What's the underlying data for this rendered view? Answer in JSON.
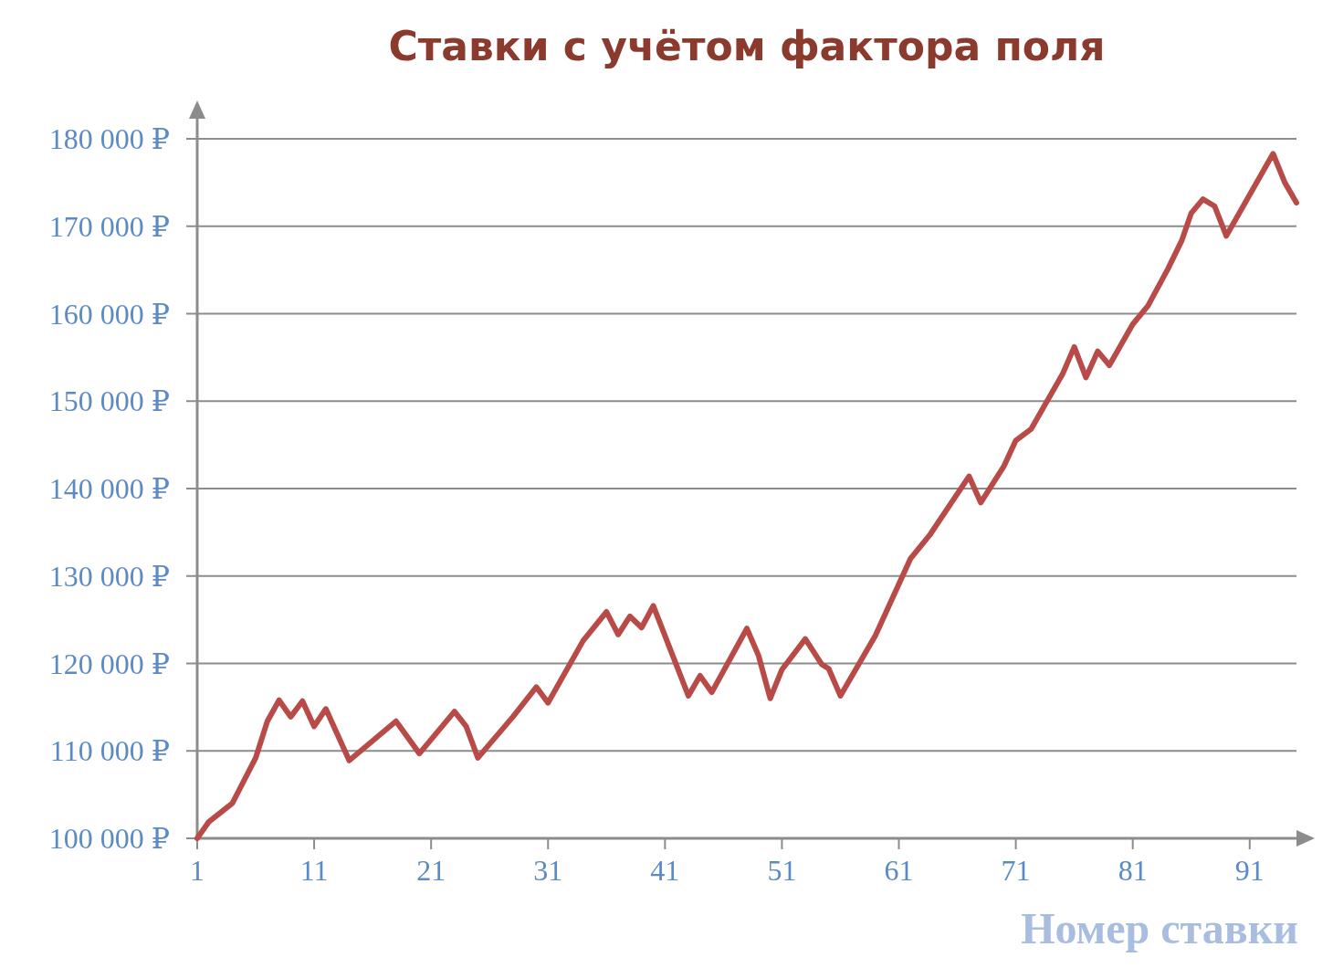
{
  "chart_data": {
    "type": "line",
    "title": "Ставки с учётом фактора поля",
    "xlabel": "Номер ставки",
    "x": [
      1,
      2,
      4,
      6,
      7,
      8,
      9,
      10,
      11,
      12,
      14,
      18,
      20,
      23,
      24,
      25,
      28,
      30,
      31,
      34,
      36,
      37,
      38,
      39,
      40,
      43,
      44,
      45,
      48,
      49,
      50,
      51,
      53,
      54.4,
      55,
      56,
      59,
      62,
      63.7,
      67,
      68,
      70,
      71,
      72.3,
      75,
      76,
      77,
      78,
      79,
      81,
      82.3,
      84,
      85.2,
      86,
      87,
      88,
      89,
      93,
      94,
      95
    ],
    "series": [
      {
        "color": "#b84a48",
        "values": [
          100000,
          101900,
          104000,
          109200,
          113400,
          115800,
          113900,
          115700,
          112800,
          114800,
          108900,
          113400,
          109700,
          114500,
          112800,
          109200,
          113900,
          117300,
          115500,
          122600,
          125900,
          123300,
          125400,
          124100,
          126600,
          116300,
          118600,
          116700,
          124000,
          120900,
          116000,
          119300,
          122800,
          119900,
          119400,
          116300,
          123200,
          132000,
          134800,
          141400,
          138400,
          142600,
          145500,
          146800,
          153100,
          156200,
          152700,
          155700,
          154100,
          158800,
          160900,
          165100,
          168400,
          171500,
          173100,
          172300,
          168900,
          178300,
          175000,
          172700
        ]
      }
    ],
    "xlim": [
      1,
      95
    ],
    "xticks": [
      1,
      11,
      21,
      31,
      41,
      51,
      61,
      71,
      81,
      91
    ],
    "ylim": [
      100000,
      180000
    ],
    "yticks": [
      {
        "value": 100000,
        "label": "100 000 ₽"
      },
      {
        "value": 110000,
        "label": "110 000 ₽"
      },
      {
        "value": 120000,
        "label": "120 000 ₽"
      },
      {
        "value": 130000,
        "label": "130 000 ₽"
      },
      {
        "value": 140000,
        "label": "140 000 ₽"
      },
      {
        "value": 150000,
        "label": "150 000 ₽"
      },
      {
        "value": 160000,
        "label": "160 000 ₽"
      },
      {
        "value": 170000,
        "label": "170 000 ₽"
      },
      {
        "value": 180000,
        "label": "180 000 ₽"
      }
    ],
    "grid": "y",
    "marker": "none",
    "line_style": "solid"
  }
}
